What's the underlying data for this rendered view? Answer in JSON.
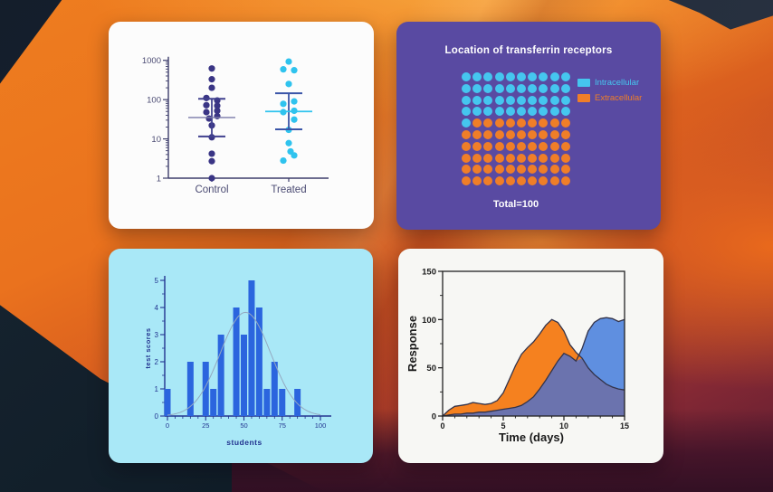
{
  "desktop": {
    "wallpaper": {
      "base_orange": "#ee7d1f",
      "highlight_orange": "#f8a93e",
      "maroon": "#832834",
      "dark_navy_corner": "#141e2b",
      "dark_teal_bottom": "#0d1a24",
      "dark_maroon_bottom": "#331024"
    }
  },
  "chart_data": [
    {
      "type": "scatter",
      "panel_background": "#fcfcfc",
      "y_scale": "log10",
      "ylim": [
        1,
        1000
      ],
      "y_ticks": [
        1,
        10,
        100,
        1000
      ],
      "axis_color": "#3d3d6b",
      "tick_label_color": "#4b4b73",
      "group_label_color": "#4b4b73",
      "groups": [
        {
          "label": "Control",
          "dot_color": "#3a3585",
          "error_color": "#41418f",
          "mean_line_color": "#7a7aa8",
          "mean": 35,
          "sd_low": 11.5,
          "sd_high": 105,
          "points": [
            [
              620,
              0
            ],
            [
              330,
              0
            ],
            [
              200,
              0
            ],
            [
              110,
              -6
            ],
            [
              95,
              6
            ],
            [
              72,
              -6
            ],
            [
              70,
              6
            ],
            [
              52,
              6
            ],
            [
              48,
              -6
            ],
            [
              38,
              6
            ],
            [
              33,
              -3
            ],
            [
              22,
              0
            ],
            [
              11,
              0
            ],
            [
              4.2,
              0
            ],
            [
              2.7,
              0
            ],
            [
              1,
              0
            ]
          ]
        },
        {
          "label": "Treated",
          "dot_color": "#2fc3ee",
          "error_color": "#3a55a8",
          "mean_line_color": "#2fc3ee",
          "mean": 50,
          "sd_low": 17.5,
          "sd_high": 145,
          "points": [
            [
              930,
              0
            ],
            [
              590,
              -6
            ],
            [
              560,
              6
            ],
            [
              250,
              0
            ],
            [
              90,
              6
            ],
            [
              78,
              -6
            ],
            [
              52,
              6
            ],
            [
              48,
              -6
            ],
            [
              31,
              6
            ],
            [
              17,
              0
            ],
            [
              7.8,
              0
            ],
            [
              4.8,
              2
            ],
            [
              3.8,
              6
            ],
            [
              2.8,
              -6
            ]
          ]
        }
      ]
    },
    {
      "type": "pictogram",
      "title": "Location of transferrin receptors",
      "title_color": "#ffffff",
      "total_label": "Total=100",
      "panel_background": "#594aa2",
      "grid": {
        "rows": 10,
        "cols": 10
      },
      "series": [
        {
          "name": "Intracellular",
          "count": 41,
          "color": "#45c6ef",
          "label_color": "#45c6ef"
        },
        {
          "name": "Extracellular",
          "count": 59,
          "color": "#ef7e28",
          "label_color": "#ef7e28"
        }
      ]
    },
    {
      "type": "bar",
      "panel_background": "#a9e8f7",
      "xlabel": "students",
      "ylabel": "test scores",
      "xlim": [
        0,
        100
      ],
      "ylim": [
        0,
        5
      ],
      "x_ticks": [
        0,
        25,
        50,
        75,
        100
      ],
      "y_ticks": [
        0,
        1,
        2,
        3,
        4,
        5
      ],
      "bar_positions": [
        0,
        15,
        25,
        30,
        35,
        45,
        50,
        55,
        60,
        65,
        70,
        75,
        85
      ],
      "bar_heights": [
        1,
        2,
        2,
        1,
        3,
        4,
        3,
        5,
        4,
        1,
        2,
        1,
        1
      ],
      "bar_color": "#2b65de",
      "axis_color": "#22338f",
      "curve": {
        "shape": "gaussian",
        "mean": 51,
        "sd": 16.5,
        "amplitude": 3.82,
        "color": "#93a8c0"
      }
    },
    {
      "type": "area",
      "panel_background": "#f7f7f4",
      "xlabel": "Time (days)",
      "ylabel": "Response",
      "xlim": [
        0,
        15
      ],
      "ylim": [
        0,
        150
      ],
      "x_ticks": [
        0,
        5,
        10,
        15
      ],
      "y_ticks": [
        0,
        50,
        100,
        150
      ],
      "axis_color": "#1a1a1a",
      "outline_color": "#33334a",
      "overlap_color": "#6b73ae",
      "x_step": 0.5,
      "series": [
        {
          "color": "#f5811f",
          "values": [
            0,
            6,
            10,
            11,
            12,
            14,
            13,
            12,
            13,
            16,
            24,
            38,
            52,
            64,
            71,
            77,
            85,
            94,
            100,
            97,
            88,
            74,
            66,
            60,
            50,
            43,
            38,
            33,
            30,
            28,
            27
          ]
        },
        {
          "color": "#5f8fe0",
          "values": [
            0,
            1,
            2,
            2,
            3,
            3,
            4,
            4,
            5,
            6,
            7,
            8,
            9,
            11,
            15,
            20,
            28,
            37,
            47,
            57,
            65,
            62,
            57,
            70,
            88,
            97,
            101,
            102,
            101,
            98,
            100
          ]
        }
      ]
    }
  ]
}
